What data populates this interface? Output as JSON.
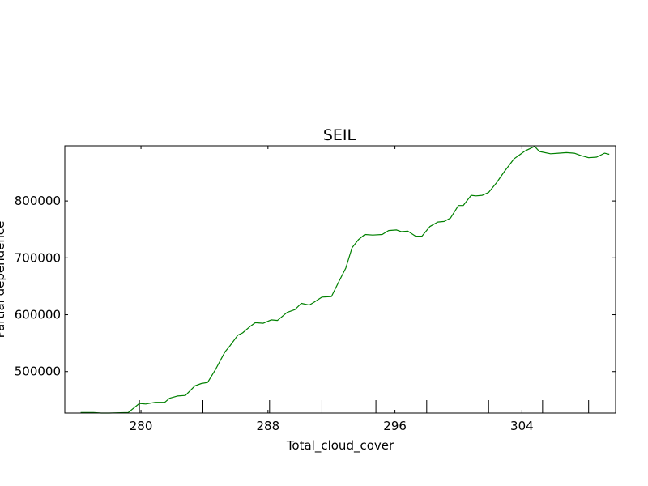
{
  "chart_data": {
    "type": "line",
    "title": "SEIL",
    "xlabel": "Total_cloud_cover",
    "ylabel": "Partial dependence",
    "xlim": [
      275.2,
      309.9
    ],
    "ylim": [
      427000,
      897000
    ],
    "xticks": [
      {
        "value": 280,
        "label": "280"
      },
      {
        "value": 288,
        "label": "288"
      },
      {
        "value": 296,
        "label": "296"
      },
      {
        "value": 304,
        "label": "304"
      }
    ],
    "yticks": [
      {
        "value": 500000,
        "label": "500000"
      },
      {
        "value": 600000,
        "label": "600000"
      },
      {
        "value": 700000,
        "label": "700000"
      },
      {
        "value": 800000,
        "label": "800000"
      }
    ],
    "deciles": [
      279.9,
      283.9,
      288.1,
      291.4,
      294.8,
      298.0,
      301.9,
      305.3,
      308.2
    ],
    "grid": false,
    "series": [
      {
        "color": "#008000",
        "x": [
          276.2,
          277.0,
          277.5,
          278.0,
          279.2,
          279.9,
          280.3,
          280.9,
          281.5,
          281.8,
          282.3,
          282.8,
          283.4,
          283.8,
          284.2,
          284.7,
          285.3,
          285.6,
          286.1,
          286.4,
          286.9,
          287.2,
          287.7,
          288.2,
          288.6,
          289.2,
          289.7,
          290.1,
          290.6,
          290.9,
          291.4,
          292.0,
          292.5,
          292.9,
          293.3,
          293.7,
          294.1,
          294.6,
          295.2,
          295.6,
          296.1,
          296.4,
          296.8,
          297.3,
          297.7,
          298.2,
          298.7,
          299.1,
          299.5,
          300.0,
          300.3,
          300.8,
          301.1,
          301.5,
          301.9,
          302.4,
          302.9,
          303.5,
          303.9,
          304.2,
          304.8,
          305.1,
          305.8,
          306.3,
          306.8,
          307.3,
          307.7,
          308.2,
          308.7,
          309.2,
          309.5
        ],
        "y": [
          428000,
          428000,
          427000,
          427000,
          428000,
          444000,
          443000,
          446000,
          446000,
          453000,
          457000,
          458000,
          475000,
          479000,
          481000,
          504000,
          535000,
          545000,
          564000,
          568000,
          580000,
          586000,
          585000,
          591000,
          590000,
          604000,
          609000,
          620000,
          617000,
          622000,
          631000,
          632000,
          660000,
          682000,
          718000,
          732000,
          741000,
          740000,
          741000,
          748000,
          749000,
          746000,
          747000,
          738000,
          738000,
          755000,
          763000,
          764000,
          770000,
          792000,
          792000,
          810000,
          809000,
          810000,
          815000,
          832000,
          852000,
          874000,
          882000,
          888000,
          896000,
          887000,
          883000,
          884000,
          885000,
          884000,
          880000,
          876000,
          877000,
          884000,
          882000
        ]
      }
    ]
  }
}
